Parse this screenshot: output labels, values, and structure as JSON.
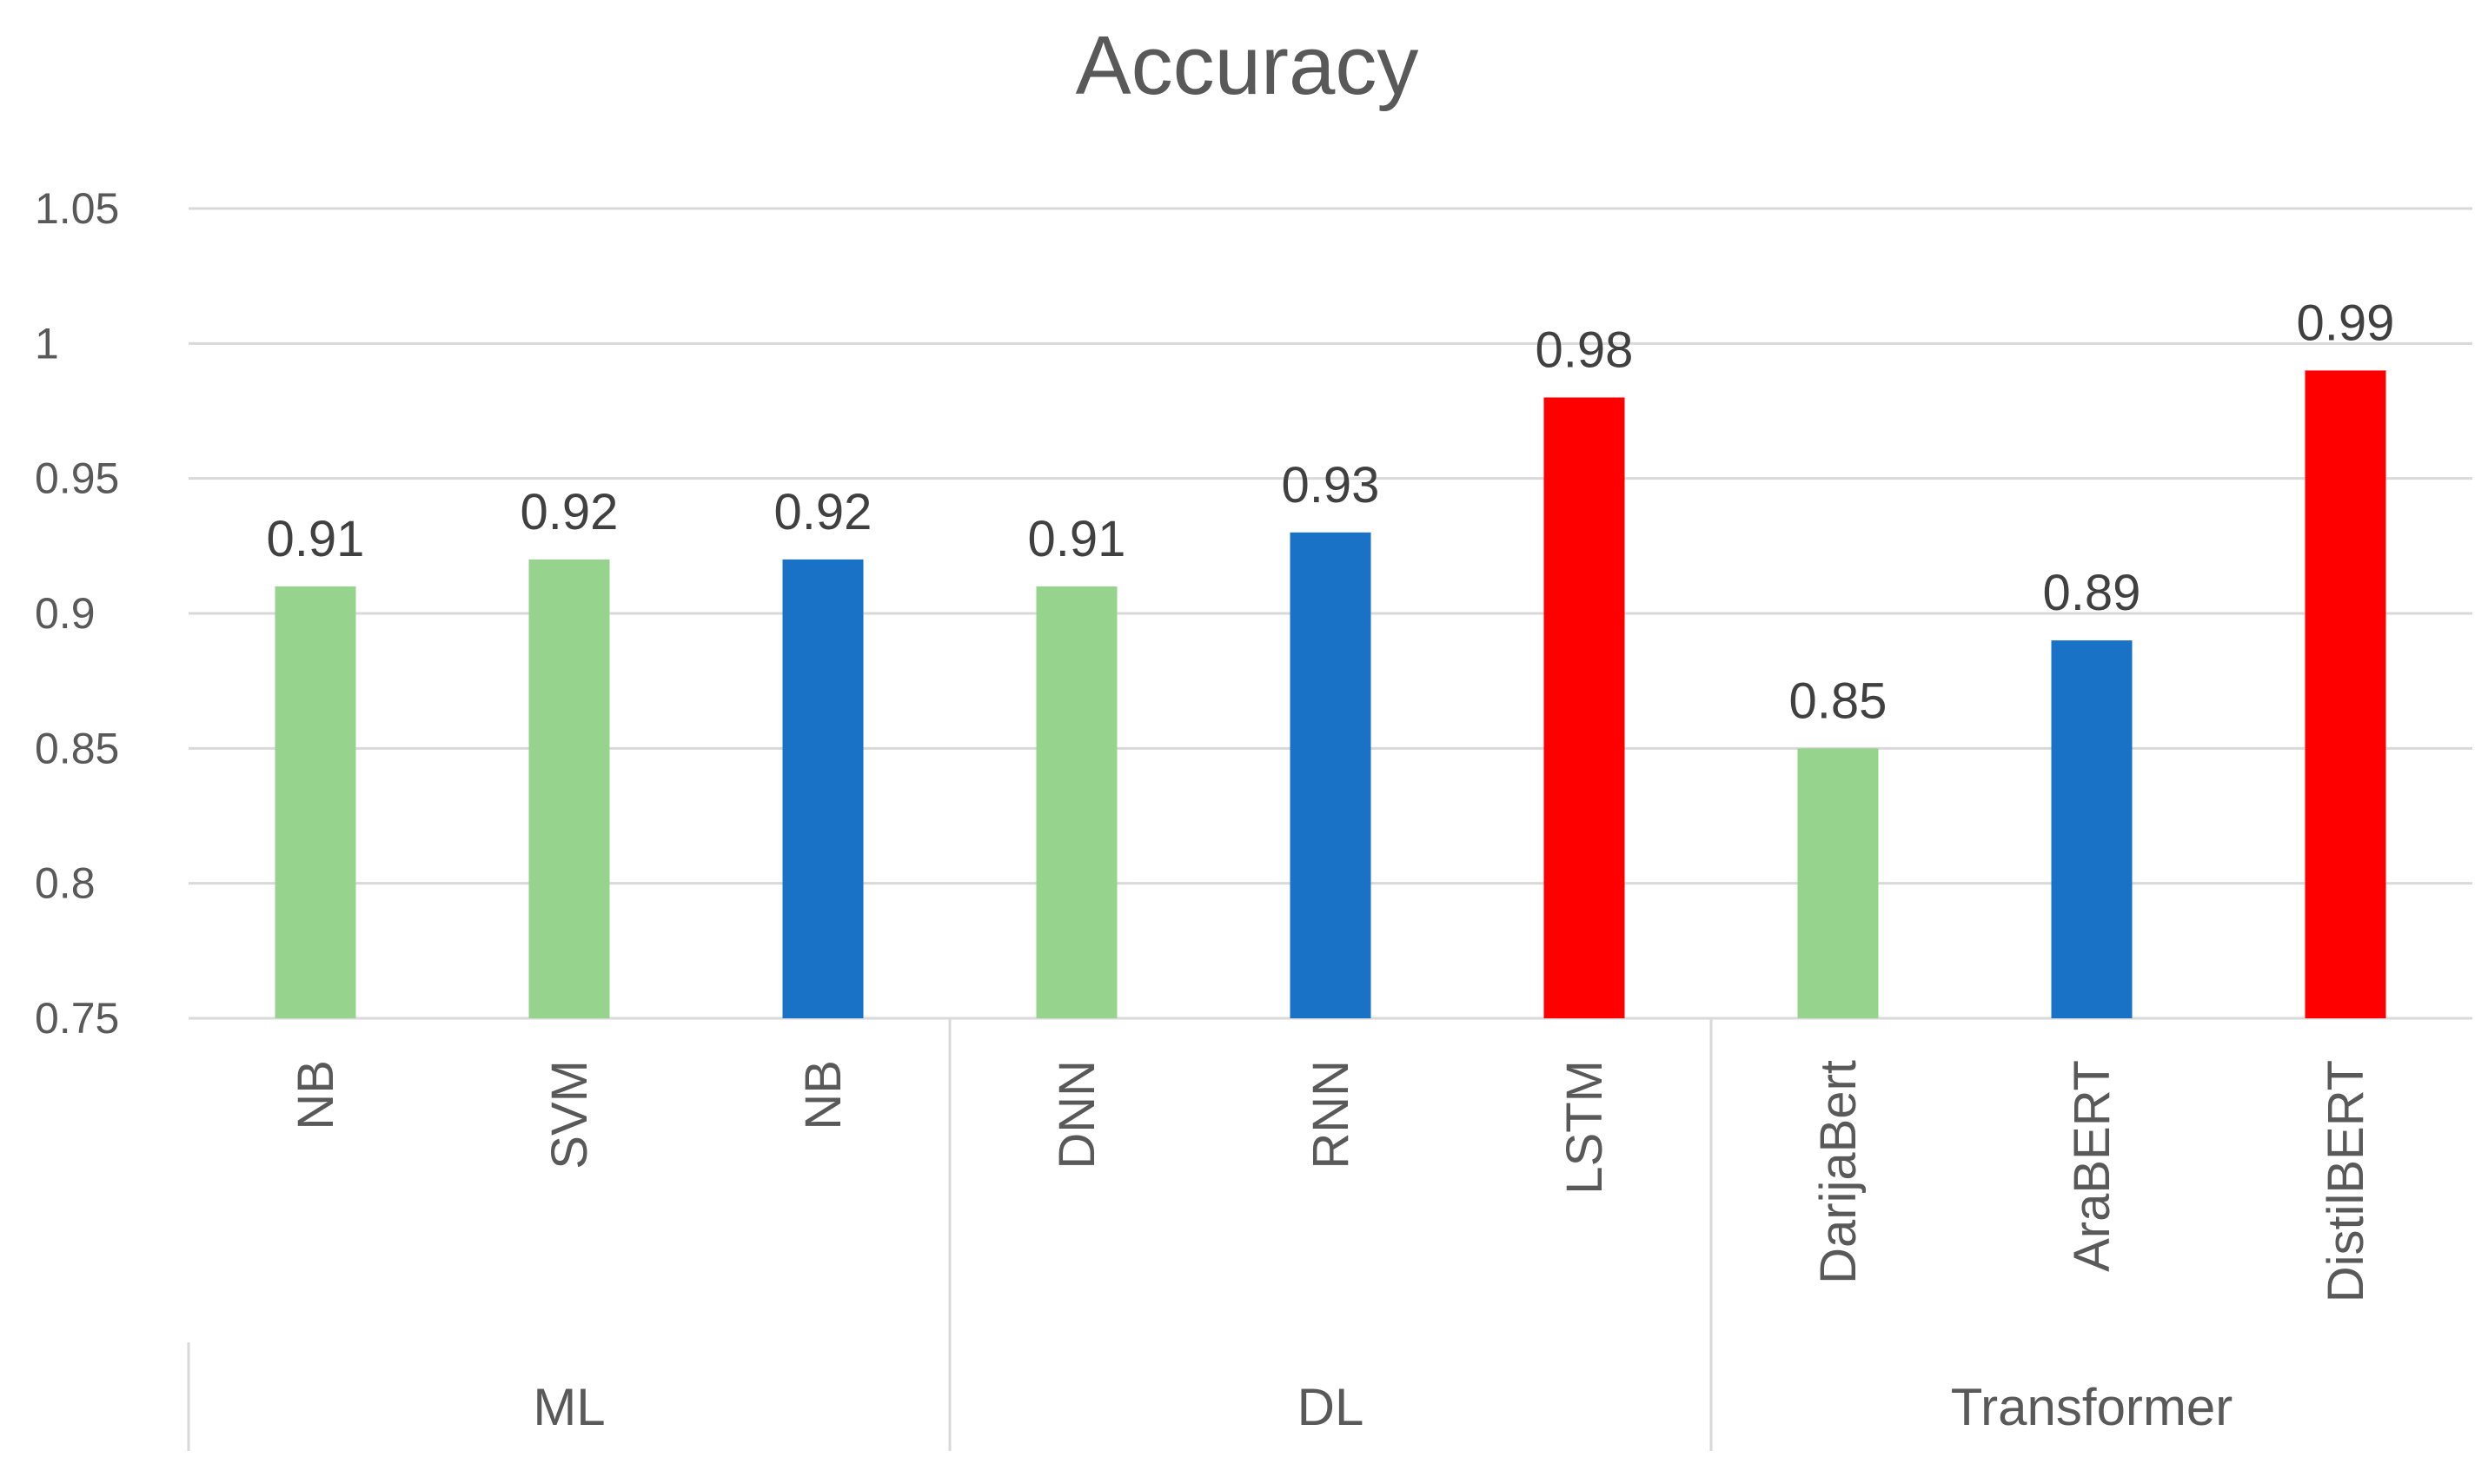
{
  "chart_data": {
    "type": "bar",
    "title": "Accuracy",
    "ylim": [
      0.75,
      1.05
    ],
    "yticks": [
      "0.75",
      "0.8",
      "0.85",
      "0.9",
      "0.95",
      "1",
      "1.05"
    ],
    "grid": true,
    "categories": [
      "NB",
      "SVM",
      "NB",
      "DNN",
      "RNN",
      "LSTM",
      "DarijaBert",
      "AraBERT",
      "DistilBERT"
    ],
    "values": [
      0.91,
      0.92,
      0.92,
      0.91,
      0.93,
      0.98,
      0.85,
      0.89,
      0.99
    ],
    "value_labels": [
      "0.91",
      "0.92",
      "0.92",
      "0.91",
      "0.93",
      "0.98",
      "0.85",
      "0.89",
      "0.99"
    ],
    "colors": [
      "#96d38c",
      "#96d38c",
      "#1a72c6",
      "#96d38c",
      "#1a72c6",
      "#ff0000",
      "#96d38c",
      "#1a72c6",
      "#ff0000"
    ],
    "groups": [
      {
        "label": "ML",
        "count": 3
      },
      {
        "label": "DL",
        "count": 3
      },
      {
        "label": "Transformer",
        "count": 3
      }
    ]
  }
}
